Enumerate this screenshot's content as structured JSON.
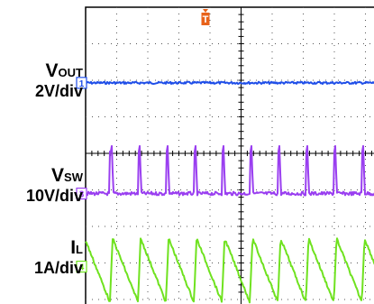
{
  "chart_data": {
    "type": "line",
    "title": "",
    "grid": true,
    "trigger_marker": "T",
    "time_axis": {
      "divisions": 10,
      "switching_period_div": 0.9
    },
    "channels": [
      {
        "id": "1",
        "label_main": "V",
        "label_sub": "OUT",
        "scale": "2V/div",
        "color": "#1f4ee8",
        "waveform": "dc",
        "ripple_div": 0.03
      },
      {
        "id": "3",
        "label_main": "V",
        "label_sub": "SW",
        "scale": "10V/div",
        "color": "#9a3ff0",
        "waveform": "switch-node",
        "pulse_height_div": 1.3
      },
      {
        "id": "4",
        "label_main": "I",
        "label_sub": "L",
        "scale": "1A/div",
        "color": "#6fe21f",
        "waveform": "sawtooth",
        "peak_to_peak_div": 1.45
      }
    ]
  }
}
